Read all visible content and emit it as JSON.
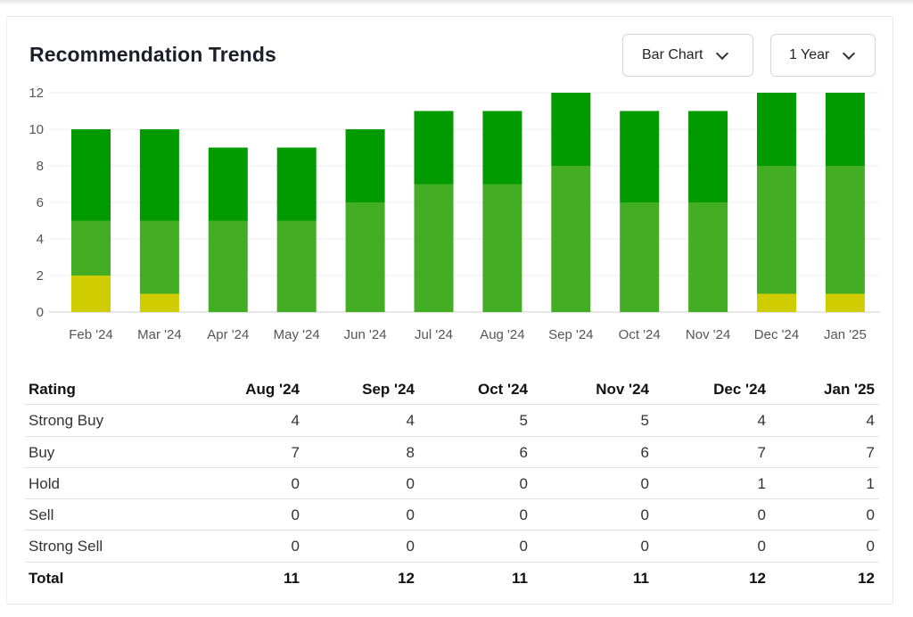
{
  "title": "Recommendation Trends",
  "controls": {
    "chart_type": "Bar Chart",
    "period": "1 Year"
  },
  "colors": {
    "strong_buy": "#019b00",
    "buy": "#43ae23",
    "hold": "#cfcd00",
    "sell": "#e07b00",
    "strong_sell": "#c1272d"
  },
  "chart_data": {
    "type": "bar",
    "stacked": true,
    "categories": [
      "Feb '24",
      "Mar '24",
      "Apr '24",
      "May '24",
      "Jun '24",
      "Jul '24",
      "Aug '24",
      "Sep '24",
      "Oct '24",
      "Nov '24",
      "Dec '24",
      "Jan '25"
    ],
    "series": [
      {
        "key": "strong_sell",
        "values": [
          0,
          0,
          0,
          0,
          0,
          0,
          0,
          0,
          0,
          0,
          0,
          0
        ]
      },
      {
        "key": "sell",
        "values": [
          0,
          0,
          0,
          0,
          0,
          0,
          0,
          0,
          0,
          0,
          0,
          0
        ]
      },
      {
        "key": "hold",
        "values": [
          2,
          1,
          0,
          0,
          0,
          0,
          0,
          0,
          0,
          0,
          1,
          1
        ]
      },
      {
        "key": "buy",
        "values": [
          3,
          4,
          5,
          5,
          6,
          7,
          7,
          8,
          6,
          6,
          7,
          7
        ]
      },
      {
        "key": "strong_buy",
        "values": [
          5,
          5,
          4,
          4,
          4,
          4,
          4,
          4,
          5,
          5,
          4,
          4
        ]
      }
    ],
    "ylim": [
      0,
      12
    ],
    "yticks": [
      0,
      2,
      4,
      6,
      8,
      10,
      12
    ],
    "grid": true
  },
  "table": {
    "header": [
      "Rating",
      "Aug '24",
      "Sep '24",
      "Oct '24",
      "Nov '24",
      "Dec '24",
      "Jan '25"
    ],
    "rows": [
      [
        "Strong Buy",
        "4",
        "4",
        "5",
        "5",
        "4",
        "4"
      ],
      [
        "Buy",
        "7",
        "8",
        "6",
        "6",
        "7",
        "7"
      ],
      [
        "Hold",
        "0",
        "0",
        "0",
        "0",
        "1",
        "1"
      ],
      [
        "Sell",
        "0",
        "0",
        "0",
        "0",
        "0",
        "0"
      ],
      [
        "Strong Sell",
        "0",
        "0",
        "0",
        "0",
        "0",
        "0"
      ]
    ],
    "total": [
      "Total",
      "11",
      "12",
      "11",
      "11",
      "12",
      "12"
    ]
  }
}
